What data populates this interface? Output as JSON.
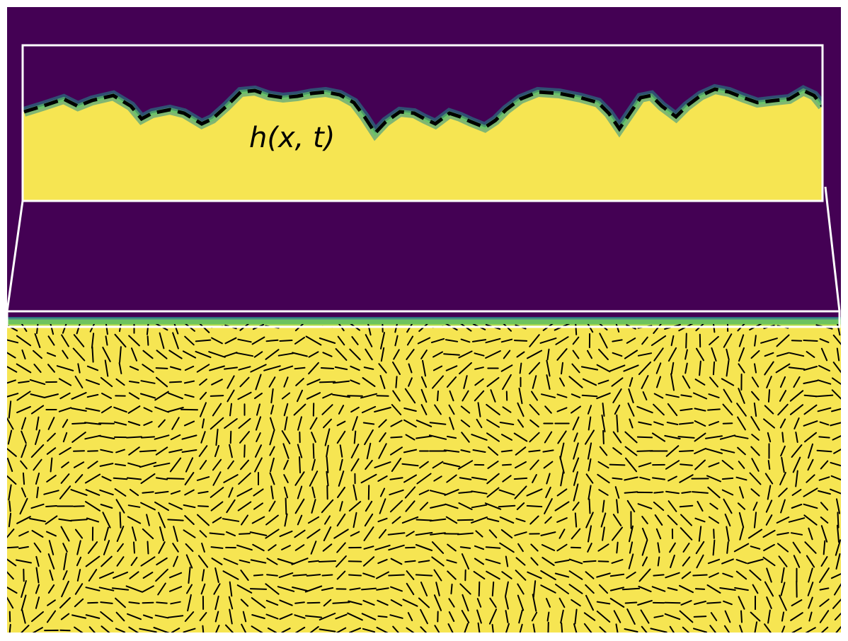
{
  "figure": {
    "annotation_label": "h(x, t)"
  },
  "colors": {
    "background": "#ffffff",
    "empty_phase": "#440154",
    "filled_phase": "#f6e552",
    "interface_teal": "#2a8f8a",
    "interface_green": "#7ad151",
    "zoom_frame": "#ffffff",
    "interface_line": "#000000",
    "director_rods": "#000000"
  },
  "interface": {
    "style": "dashed"
  },
  "director_field": {
    "description_visible": false
  }
}
